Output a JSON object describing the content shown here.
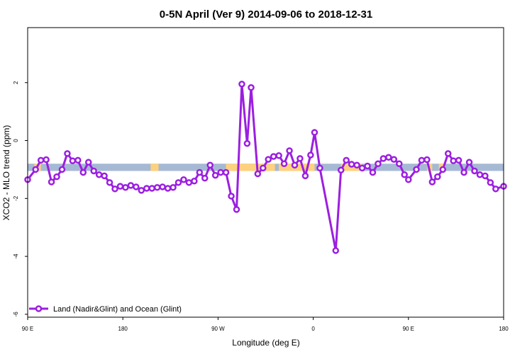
{
  "chart_data": {
    "type": "line",
    "title": "0-5N April (Ver 9)   2014-09-06 to 2018-12-31",
    "xlabel": "Longitude (deg E)",
    "ylabel": "XCO2 - MLO trend (ppm)",
    "xlim": [
      90,
      450
    ],
    "ylim": [
      -6.1,
      3.9
    ],
    "x_ticks": [
      {
        "value": 90,
        "label": "90 E"
      },
      {
        "value": 162,
        "label": "180"
      },
      {
        "value": 234,
        "label": "90 W"
      },
      {
        "value": 306,
        "label": "0"
      },
      {
        "value": 378,
        "label": "90 E"
      },
      {
        "value": 450,
        "label": "180"
      }
    ],
    "y_ticks": [
      {
        "value": 2,
        "label": "2"
      },
      {
        "value": 0,
        "label": "0"
      },
      {
        "value": -2,
        "label": "-2"
      },
      {
        "value": -4,
        "label": "-4"
      },
      {
        "value": -6,
        "label": "-6"
      }
    ],
    "band": {
      "y_range": [
        -1.05,
        -0.8
      ],
      "base_color": "#a6b9d4",
      "land_color": "#fdd17e",
      "land_x_ranges": [
        [
          95,
          100
        ],
        [
          183,
          189
        ],
        [
          240,
          277
        ],
        [
          280,
          307
        ],
        [
          327,
          343
        ],
        [
          392,
          396
        ],
        [
          401,
          406
        ]
      ]
    },
    "series": [
      {
        "name": "Land (Nadir&Glint) and Ocean (Glint)",
        "color": "#9b1fe0",
        "points": [
          [
            90,
            -1.35
          ],
          [
            96,
            -1.0
          ],
          [
            100,
            -0.68
          ],
          [
            104,
            -0.66
          ],
          [
            108,
            -1.43
          ],
          [
            112,
            -1.25
          ],
          [
            116,
            -1.0
          ],
          [
            120,
            -0.45
          ],
          [
            124,
            -0.7
          ],
          [
            128,
            -0.68
          ],
          [
            132,
            -1.1
          ],
          [
            136,
            -0.75
          ],
          [
            140,
            -1.05
          ],
          [
            144,
            -1.18
          ],
          [
            148,
            -1.22
          ],
          [
            152,
            -1.45
          ],
          [
            156,
            -1.67
          ],
          [
            160,
            -1.58
          ],
          [
            164,
            -1.62
          ],
          [
            168,
            -1.55
          ],
          [
            172,
            -1.6
          ],
          [
            176,
            -1.72
          ],
          [
            180,
            -1.65
          ],
          [
            184,
            -1.65
          ],
          [
            188,
            -1.62
          ],
          [
            192,
            -1.6
          ],
          [
            196,
            -1.65
          ],
          [
            200,
            -1.62
          ],
          [
            204,
            -1.45
          ],
          [
            208,
            -1.35
          ],
          [
            212,
            -1.45
          ],
          [
            216,
            -1.4
          ],
          [
            220,
            -1.1
          ],
          [
            224,
            -1.3
          ],
          [
            228,
            -0.85
          ],
          [
            232,
            -1.2
          ],
          [
            236,
            -1.1
          ],
          [
            240,
            -1.1
          ],
          [
            244,
            -1.92
          ],
          [
            248,
            -2.38
          ],
          [
            252,
            1.95
          ],
          [
            256,
            -0.1
          ],
          [
            259,
            1.83
          ],
          [
            264,
            -1.15
          ],
          [
            268,
            -0.95
          ],
          [
            272,
            -0.65
          ],
          [
            276,
            -0.55
          ],
          [
            280,
            -0.52
          ],
          [
            284,
            -0.8
          ],
          [
            288,
            -0.35
          ],
          [
            292,
            -0.85
          ],
          [
            296,
            -0.62
          ],
          [
            300,
            -1.22
          ],
          [
            304,
            -0.5
          ],
          [
            307,
            0.28
          ],
          [
            311,
            -0.95
          ],
          [
            323,
            -3.8
          ],
          [
            327,
            -1.02
          ],
          [
            331,
            -0.68
          ],
          [
            335,
            -0.82
          ],
          [
            339,
            -0.85
          ],
          [
            343,
            -0.95
          ],
          [
            347,
            -0.88
          ],
          [
            351,
            -1.1
          ],
          [
            355,
            -0.8
          ],
          [
            359,
            -0.62
          ],
          [
            363,
            -0.58
          ],
          [
            367,
            -0.65
          ],
          [
            371,
            -0.8
          ],
          [
            375,
            -1.18
          ],
          [
            378,
            -1.35
          ],
          [
            384,
            -1.0
          ],
          [
            388,
            -0.68
          ],
          [
            392,
            -0.66
          ],
          [
            396,
            -1.43
          ],
          [
            400,
            -1.25
          ],
          [
            404,
            -1.0
          ],
          [
            408,
            -0.45
          ],
          [
            412,
            -0.7
          ],
          [
            416,
            -0.68
          ],
          [
            420,
            -1.1
          ],
          [
            424,
            -0.75
          ],
          [
            428,
            -1.05
          ],
          [
            432,
            -1.18
          ],
          [
            436,
            -1.22
          ],
          [
            440,
            -1.45
          ],
          [
            444,
            -1.67
          ],
          [
            450,
            -1.58
          ]
        ]
      }
    ],
    "legend": {
      "position": "bottom-left"
    }
  }
}
